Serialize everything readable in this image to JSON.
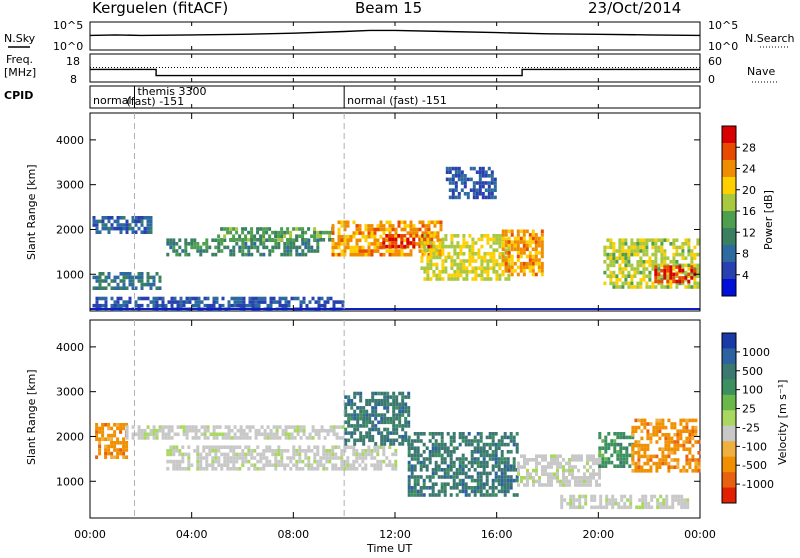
{
  "header": {
    "station": "Kerguelen (fitACF)",
    "beam": "Beam 15",
    "date": "23/Oct/2014"
  },
  "noise_panel": {
    "left_label": "N.Sky",
    "right_label": "N.Search",
    "left_ticks": [
      "10^5",
      "10^0"
    ],
    "right_ticks": [
      "10^5",
      "10^0"
    ]
  },
  "freq_panel": {
    "left_label_line1": "Freq.",
    "left_label_line2": "[MHz]",
    "left_ticks": [
      "18",
      "8"
    ],
    "right_label": "Nave",
    "right_ticks": [
      "60",
      "0"
    ]
  },
  "cpid_panel": {
    "label": "CPID",
    "segments": [
      {
        "start_hour": 0.0,
        "text": "normal"
      },
      {
        "start_hour": 1.75,
        "text": "themis 3300",
        "text2": "(fast) -151"
      },
      {
        "start_hour": 10.0,
        "text": "normal (fast) -151"
      }
    ]
  },
  "time_axis": {
    "label": "Time UT",
    "ticks": [
      "00:00",
      "04:00",
      "08:00",
      "12:00",
      "16:00",
      "20:00",
      "00:00"
    ],
    "hours": [
      0,
      4,
      8,
      12,
      16,
      20,
      24
    ]
  },
  "power_panel": {
    "ylabel": "Slant Range [km]",
    "yticks": [
      "1000",
      "2000",
      "3000",
      "4000"
    ],
    "colorbar_label": "Power [dB]",
    "colorbar_ticks": [
      "4",
      "8",
      "12",
      "16",
      "20",
      "24",
      "28"
    ],
    "colors": [
      "#0010d8",
      "#2840b0",
      "#2c6aa0",
      "#3a8060",
      "#4e9e50",
      "#a8c840",
      "#ffd000",
      "#f08c00",
      "#e84a00",
      "#d80000"
    ]
  },
  "velocity_panel": {
    "ylabel": "Slant Range [km]",
    "yticks": [
      "1000",
      "2000",
      "3000",
      "4000"
    ],
    "colorbar_label": "Velocity [m s⁻¹]",
    "colorbar_ticks": [
      "1000",
      "500",
      "100",
      "25",
      "-25",
      "-100",
      "-500",
      "-1000"
    ],
    "colors": [
      "#1a3aa8",
      "#2c62a0",
      "#3a7870",
      "#3c9060",
      "#6ab84a",
      "#a8d860",
      "#c8c8c8",
      "#f0b040",
      "#f09000",
      "#e86010",
      "#e02000"
    ]
  },
  "chart_data": [
    {
      "type": "line",
      "title": "N.Sky / N.Search",
      "x": [
        0,
        1,
        2,
        4,
        6,
        8,
        10,
        11,
        12,
        14,
        16,
        18,
        20,
        22,
        24
      ],
      "series": [
        {
          "name": "N.Sky",
          "values": [
            2.6,
            2.7,
            2.6,
            2.7,
            2.8,
            3.0,
            3.3,
            3.5,
            3.5,
            3.3,
            3.1,
            2.9,
            2.8,
            2.7,
            2.6
          ]
        }
      ],
      "ylim": [
        0,
        5
      ]
    },
    {
      "type": "line",
      "title": "Freq. / Nave",
      "x": [
        0,
        2.6,
        2.6,
        17.0,
        17.0,
        24
      ],
      "series": [
        {
          "name": "Freq.",
          "values": [
            12.5,
            12.5,
            10.3,
            10.3,
            12.5,
            12.5
          ]
        },
        {
          "name": "Nave",
          "values": [
            31,
            31,
            31,
            31,
            31,
            31
          ]
        }
      ],
      "ylim": [
        8,
        18
      ]
    },
    {
      "type": "heatmap",
      "title": "Power [dB]",
      "xlabel": "Time UT",
      "ylabel": "Slant Range [km]",
      "xlim": [
        0,
        24
      ],
      "ylim": [
        180,
        4600
      ],
      "bands": [
        {
          "t0": 0.1,
          "t1": 2.4,
          "r0": 1950,
          "r1": 2300,
          "v": 7
        },
        {
          "t0": 0.1,
          "t1": 2.8,
          "r0": 700,
          "r1": 1050,
          "v": 9
        },
        {
          "t0": 0.1,
          "t1": 10.0,
          "r0": 200,
          "r1": 500,
          "v": 6
        },
        {
          "t0": 3.0,
          "t1": 9.0,
          "r0": 1400,
          "r1": 1800,
          "v": 11
        },
        {
          "t0": 5.0,
          "t1": 9.5,
          "r0": 1750,
          "r1": 2050,
          "v": 13
        },
        {
          "t0": 9.5,
          "t1": 13.8,
          "r0": 1400,
          "r1": 2200,
          "v": 22
        },
        {
          "t0": 11.5,
          "t1": 13.5,
          "r0": 1600,
          "r1": 1900,
          "v": 27
        },
        {
          "t0": 13.0,
          "t1": 16.5,
          "r0": 900,
          "r1": 1900,
          "v": 18
        },
        {
          "t0": 16.2,
          "t1": 17.8,
          "r0": 1000,
          "r1": 2000,
          "v": 22
        },
        {
          "t0": 20.2,
          "t1": 23.9,
          "r0": 700,
          "r1": 1800,
          "v": 17
        },
        {
          "t0": 22.2,
          "t1": 23.8,
          "r0": 800,
          "r1": 1200,
          "v": 27
        },
        {
          "t0": 14.0,
          "t1": 16.0,
          "r0": 2700,
          "r1": 3400,
          "v": 6
        }
      ]
    },
    {
      "type": "heatmap",
      "title": "Velocity [m s⁻¹]",
      "xlabel": "Time UT",
      "ylabel": "Slant Range [km]",
      "xlim": [
        0,
        24
      ],
      "ylim": [
        180,
        4600
      ],
      "bands": [
        {
          "t0": 0.2,
          "t1": 1.4,
          "r0": 1500,
          "r1": 2300,
          "v": -150
        },
        {
          "t0": 1.4,
          "t1": 10.0,
          "r0": 1950,
          "r1": 2250,
          "v": 0
        },
        {
          "t0": 3.0,
          "t1": 12.0,
          "r0": 1300,
          "r1": 1800,
          "v": 0
        },
        {
          "t0": 10.0,
          "t1": 12.5,
          "r0": 1800,
          "r1": 3000,
          "v": 120
        },
        {
          "t0": 12.5,
          "t1": 16.8,
          "r0": 700,
          "r1": 2100,
          "v": 200
        },
        {
          "t0": 16.8,
          "t1": 20.0,
          "r0": 900,
          "r1": 1600,
          "v": 0
        },
        {
          "t0": 20.0,
          "t1": 21.3,
          "r0": 1300,
          "r1": 2100,
          "v": 30
        },
        {
          "t0": 21.3,
          "t1": 23.9,
          "r0": 1200,
          "r1": 2400,
          "v": -200
        },
        {
          "t0": 18.5,
          "t1": 23.5,
          "r0": 450,
          "r1": 700,
          "v": 0
        }
      ]
    }
  ]
}
